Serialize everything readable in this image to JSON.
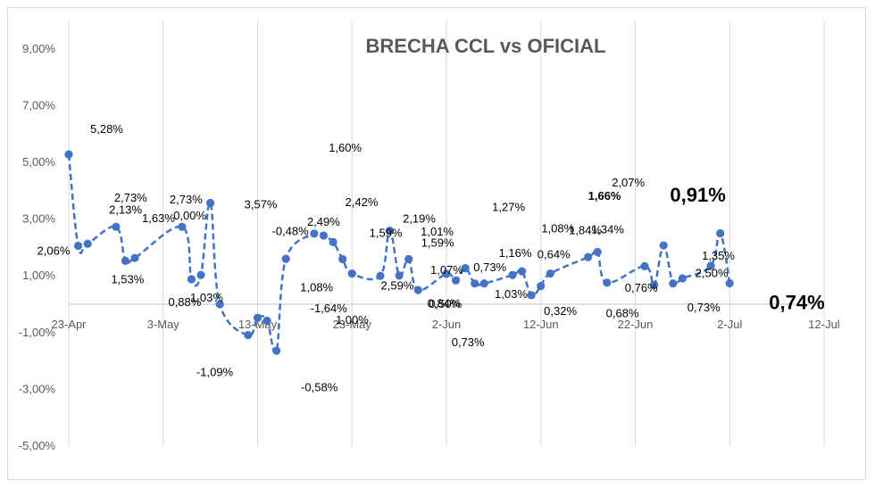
{
  "chart_data": {
    "type": "line",
    "title": "BRECHA CCL vs OFICIAL",
    "xlabel": "",
    "ylabel": "",
    "ylim": [
      -5,
      10
    ],
    "y_ticks": [
      "-5,00%",
      "-3,00%",
      "-1,00%",
      "1,00%",
      "3,00%",
      "5,00%",
      "7,00%",
      "9,00%"
    ],
    "x_ticks": [
      {
        "label": "23-Apr",
        "day": 0
      },
      {
        "label": "3-May",
        "day": 10
      },
      {
        "label": "13-May",
        "day": 20
      },
      {
        "label": "23-May",
        "day": 30
      },
      {
        "label": "2-Jun",
        "day": 40
      },
      {
        "label": "12-Jun",
        "day": 50
      },
      {
        "label": "22-Jun",
        "day": 60
      },
      {
        "label": "2-Jul",
        "day": 70
      },
      {
        "label": "12-Jul",
        "day": 80
      }
    ],
    "grid": true,
    "series": [
      {
        "color": "#4472c4",
        "points": [
          {
            "day": 0,
            "y": 5.28
          },
          {
            "day": 1,
            "y": 2.06
          },
          {
            "day": 2,
            "y": 2.13
          },
          {
            "day": 5,
            "y": 2.73
          },
          {
            "day": 6,
            "y": 1.53
          },
          {
            "day": 7,
            "y": 1.63
          },
          {
            "day": 12,
            "y": 2.73
          },
          {
            "day": 13,
            "y": 0.88
          },
          {
            "day": 14,
            "y": 1.03
          },
          {
            "day": 15,
            "y": 3.57
          },
          {
            "day": 16,
            "y": 0.0
          },
          {
            "day": 19,
            "y": -1.09
          },
          {
            "day": 20,
            "y": -0.48
          },
          {
            "day": 21,
            "y": -0.58
          },
          {
            "day": 22,
            "y": -1.64
          },
          {
            "day": 23,
            "y": 1.6
          },
          {
            "day": 26,
            "y": 2.49
          },
          {
            "day": 27,
            "y": 2.42
          },
          {
            "day": 28,
            "y": 2.19
          },
          {
            "day": 29,
            "y": 1.59
          },
          {
            "day": 30,
            "y": 1.08
          },
          {
            "day": 33,
            "y": 1.0
          },
          {
            "day": 34,
            "y": 2.59
          },
          {
            "day": 35,
            "y": 1.01
          },
          {
            "day": 36,
            "y": 1.59
          },
          {
            "day": 37,
            "y": 0.5
          },
          {
            "day": 40,
            "y": 1.07
          },
          {
            "day": 41,
            "y": 0.84
          },
          {
            "day": 42,
            "y": 1.27
          },
          {
            "day": 43,
            "y": 0.73
          },
          {
            "day": 44,
            "y": 0.73
          },
          {
            "day": 47,
            "y": 1.03
          },
          {
            "day": 48,
            "y": 1.16
          },
          {
            "day": 49,
            "y": 0.32
          },
          {
            "day": 50,
            "y": 0.64
          },
          {
            "day": 51,
            "y": 1.08
          },
          {
            "day": 55,
            "y": 1.66
          },
          {
            "day": 56,
            "y": 1.84
          },
          {
            "day": 57,
            "y": 0.76
          },
          {
            "day": 61,
            "y": 1.34
          },
          {
            "day": 62,
            "y": 0.68
          },
          {
            "day": 63,
            "y": 2.07
          },
          {
            "day": 64,
            "y": 0.73
          },
          {
            "day": 65,
            "y": 0.91
          },
          {
            "day": 68,
            "y": 1.35
          },
          {
            "day": 69,
            "y": 2.5
          },
          {
            "day": 70,
            "y": 0.74
          }
        ]
      }
    ],
    "data_labels": [
      {
        "text": "5,28%",
        "day": 0,
        "y": 5.28
      },
      {
        "text": "2,06%",
        "day": 1,
        "y": 2.06
      },
      {
        "text": "2,13%",
        "day": 2,
        "y": 2.13
      },
      {
        "text": "2,73%",
        "day": 5,
        "y": 2.73
      },
      {
        "text": "2,73%",
        "day": 12,
        "y": 2.73
      },
      {
        "text": "1,53%",
        "day": 6,
        "y": 1.53
      },
      {
        "text": "1,63%",
        "day": 7,
        "y": 1.63
      },
      {
        "text": "0,00%",
        "day": 16,
        "y": 0.0
      },
      {
        "text": "0,88%",
        "day": 13,
        "y": 0.88
      },
      {
        "text": "1,03%",
        "day": 14,
        "y": 1.03
      },
      {
        "text": "3,57%",
        "day": 15,
        "y": 3.57
      },
      {
        "text": "-1,09%",
        "day": 19,
        "y": -1.09
      },
      {
        "text": "-0,48%",
        "day": 20,
        "y": -0.48
      },
      {
        "text": "-0,58%",
        "day": 21,
        "y": -0.58
      },
      {
        "text": "-1,64%",
        "day": 22,
        "y": -1.64
      },
      {
        "text": "1,60%",
        "day": 23,
        "y": 1.6
      },
      {
        "text": "2,42%",
        "day": 27,
        "y": 2.42
      },
      {
        "text": "2,49%",
        "day": 26,
        "y": 2.49
      },
      {
        "text": "1,08%",
        "day": 30,
        "y": 1.08
      },
      {
        "text": "1,00%",
        "day": 33,
        "y": 1.0
      },
      {
        "text": "2,19%",
        "day": 28,
        "y": 2.19
      },
      {
        "text": "1,59%",
        "day": 29,
        "y": 1.59
      },
      {
        "text": "2,59%",
        "day": 34,
        "y": 2.59
      },
      {
        "text": "1,01%",
        "day": 35,
        "y": 1.01
      },
      {
        "text": "1,59%",
        "day": 36,
        "y": 1.59
      },
      {
        "text": "0,50%",
        "day": 37,
        "y": 0.5
      },
      {
        "text": "0,73%",
        "day": 43,
        "y": 0.73
      },
      {
        "text": "0,84%",
        "day": 41,
        "y": 0.84
      },
      {
        "text": "1,07%",
        "day": 40,
        "y": 1.07
      },
      {
        "text": "1,27%",
        "day": 42,
        "y": 1.27
      },
      {
        "text": "0,73%",
        "day": 44,
        "y": 0.73
      },
      {
        "text": "1,03%",
        "day": 47,
        "y": 1.03
      },
      {
        "text": "1,16%",
        "day": 48,
        "y": 1.16
      },
      {
        "text": "0,64%",
        "day": 50,
        "y": 0.64
      },
      {
        "text": "1,08%",
        "day": 51,
        "y": 1.08
      },
      {
        "text": "0,32%",
        "day": 49,
        "y": 0.32
      },
      {
        "text": "1,66%",
        "day": 55,
        "y": 1.66
      },
      {
        "text": "1,34%",
        "day": 61,
        "y": 1.34
      },
      {
        "text": "1,84%",
        "day": 56,
        "y": 1.84
      },
      {
        "text": "2,07%",
        "day": 63,
        "y": 2.07
      },
      {
        "text": "0,76%",
        "day": 57,
        "y": 0.76
      },
      {
        "text": "0,68%",
        "day": 62,
        "y": 0.68
      },
      {
        "text": "0,73%",
        "day": 64,
        "y": 0.73
      },
      {
        "text": "0,91%",
        "day": 65,
        "y": 0.91
      },
      {
        "text": "2,50%",
        "day": 69,
        "y": 2.5
      },
      {
        "text": "1,35%",
        "day": 68,
        "y": 1.35
      },
      {
        "text": "0,74%",
        "day": 70,
        "y": 0.74
      }
    ]
  }
}
